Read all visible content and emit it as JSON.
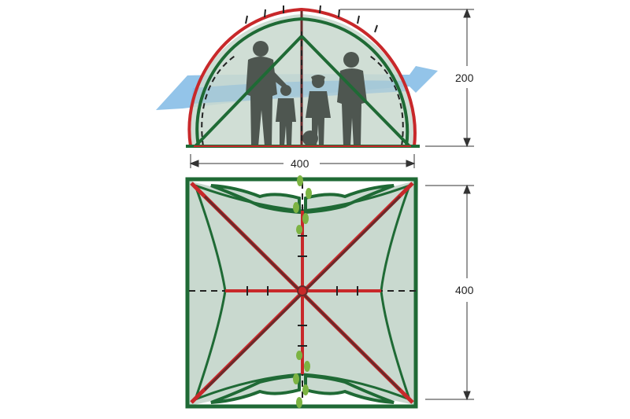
{
  "dimensions": {
    "height_label": "200",
    "width_label": "400",
    "depth_label": "400"
  },
  "colors": {
    "frame_green": "#1f6a35",
    "pole_red": "#c8282a",
    "fabric_fill": "#c9d9cf",
    "dashed_line": "#222222",
    "wind_arrow": "#6fb0e2",
    "silhouette": "#4e5650",
    "footprint": "#7cb342",
    "dimension_line": "#333333"
  },
  "icons": {
    "wind": "wind-arrow-icon",
    "people": "family-silhouette-icon",
    "footprints": "footprints-icon"
  }
}
